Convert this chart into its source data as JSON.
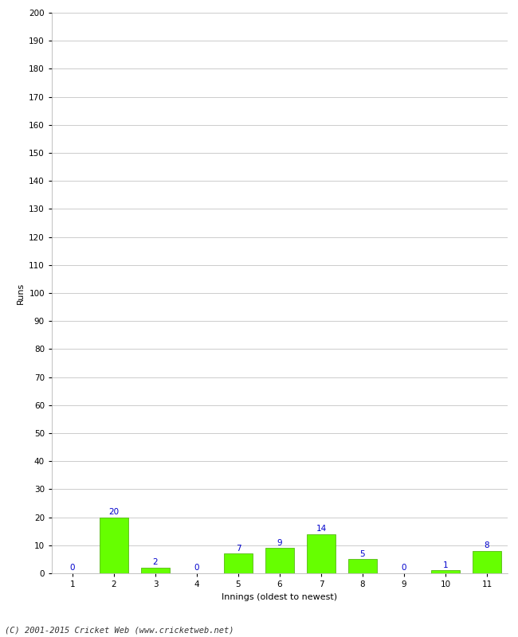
{
  "innings": [
    1,
    2,
    3,
    4,
    5,
    6,
    7,
    8,
    9,
    10,
    11
  ],
  "runs": [
    0,
    20,
    2,
    0,
    7,
    9,
    14,
    5,
    0,
    1,
    8
  ],
  "bar_color": "#66ff00",
  "bar_edge_color": "#44aa00",
  "label_color": "#0000cc",
  "xlabel": "Innings (oldest to newest)",
  "ylabel": "Runs",
  "ylim": [
    0,
    200
  ],
  "ytick_step": 10,
  "background_color": "#ffffff",
  "grid_color": "#cccccc",
  "footer_text": "(C) 2001-2015 Cricket Web (www.cricketweb.net)",
  "label_fontsize": 7.5,
  "axis_label_fontsize": 8,
  "tick_fontsize": 7.5,
  "footer_fontsize": 7.5
}
